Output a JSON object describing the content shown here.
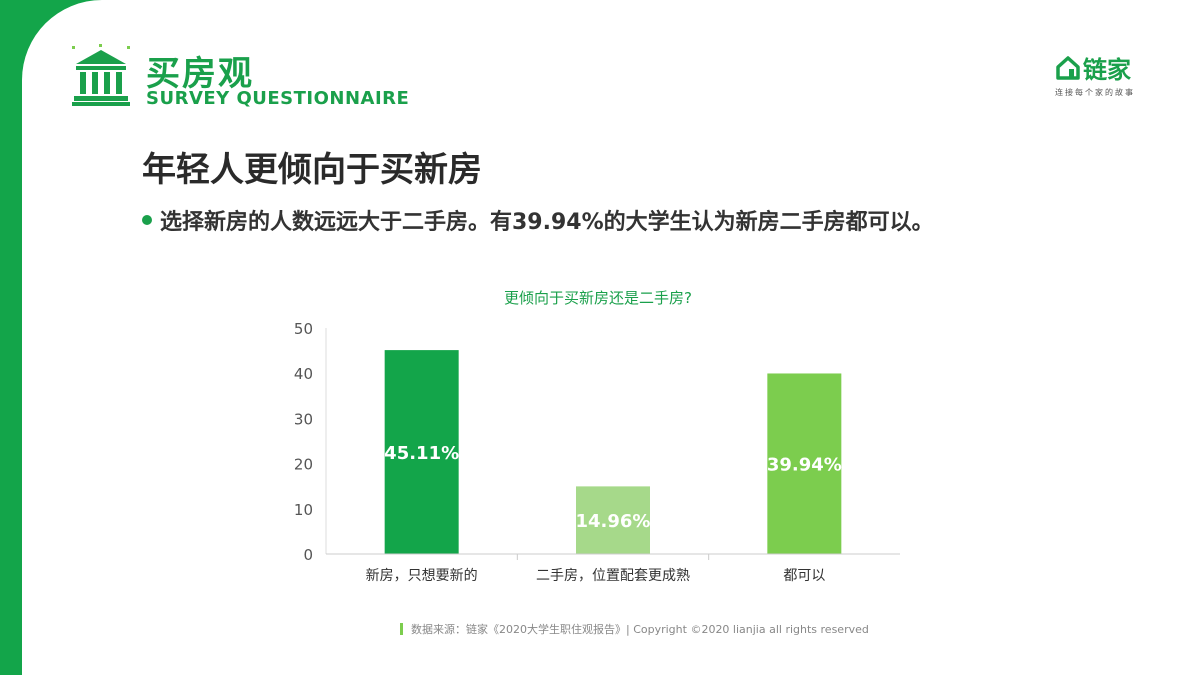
{
  "header": {
    "title": "买房观",
    "subtitle": "SURVEY QUESTIONNAIRE",
    "logo_icon": "bank-building-icon"
  },
  "brand": {
    "name": "链家",
    "slogan": "连接每个家的故事",
    "icon": "house-icon",
    "color": "#1aa04b"
  },
  "main": {
    "title": "年轻人更倾向于买新房",
    "bullet": "选择新房的人数远远大于二手房。有39.94%的大学生认为新房二手房都可以。"
  },
  "chart_data": {
    "type": "bar",
    "title": "更倾向于买新房还是二手房?",
    "categories": [
      "新房，只想要新的",
      "二手房，位置配套更成熟",
      "都可以"
    ],
    "values": [
      45.11,
      14.96,
      39.94
    ],
    "value_labels": [
      "45.11%",
      "14.96%",
      "39.94%"
    ],
    "colors": [
      "#13a54a",
      "#a6d98a",
      "#7ccd4e"
    ],
    "yticks": [
      0,
      10,
      20,
      30,
      40,
      50
    ],
    "ylim": [
      0,
      50
    ],
    "grid": false,
    "legend": "none",
    "xlabel": "",
    "ylabel": ""
  },
  "footer": {
    "source": "数据来源：链家《2020大学生职住观报告》| Copyright ©2020 lianjia all rights reserved"
  }
}
